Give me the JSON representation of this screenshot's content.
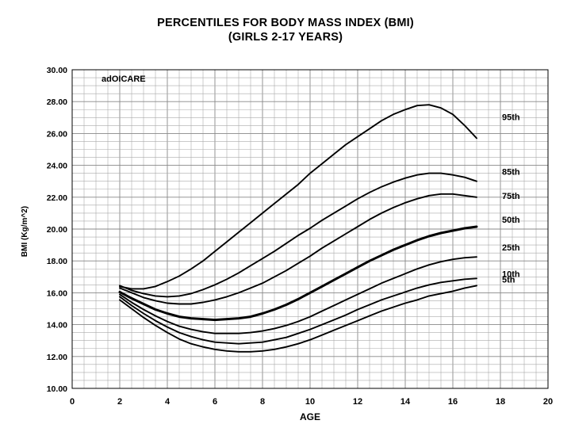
{
  "title_line1": "PERCENTILES FOR BODY MASS INDEX (BMI)",
  "title_line2": "(GIRLS 2-17 YEARS)",
  "chart_data": {
    "type": "line",
    "title": "PERCENTILES FOR BODY MASS INDEX (BMI) (GIRLS 2-17 YEARS)",
    "xlabel": "AGE",
    "ylabel": "BMI (Kg/m^2)",
    "watermark": "adOICARE",
    "xlim": [
      0,
      20
    ],
    "ylim": [
      10,
      30
    ],
    "xticks": [
      "0",
      "2",
      "4",
      "6",
      "8",
      "10",
      "12",
      "14",
      "16",
      "18",
      "20"
    ],
    "yticks": [
      "10.00",
      "12.00",
      "14.00",
      "16.00",
      "18.00",
      "20.00",
      "22.00",
      "24.00",
      "26.00",
      "28.00",
      "30.00"
    ],
    "grid": true,
    "x": [
      2,
      2.5,
      3,
      3.5,
      4,
      4.5,
      5,
      5.5,
      6,
      6.5,
      7,
      7.5,
      8,
      8.5,
      9,
      9.5,
      10,
      10.5,
      11,
      11.5,
      12,
      12.5,
      13,
      13.5,
      14,
      14.5,
      15,
      15.5,
      16,
      16.5,
      17
    ],
    "series": [
      {
        "name": "95th",
        "values": [
          16.4,
          16.25,
          16.25,
          16.4,
          16.7,
          17.05,
          17.5,
          18.0,
          18.6,
          19.2,
          19.8,
          20.4,
          21.0,
          21.6,
          22.2,
          22.8,
          23.5,
          24.1,
          24.7,
          25.3,
          25.8,
          26.3,
          26.8,
          27.2,
          27.5,
          27.75,
          27.8,
          27.6,
          27.2,
          26.5,
          25.7
        ]
      },
      {
        "name": "85th",
        "values": [
          16.45,
          16.15,
          15.95,
          15.8,
          15.75,
          15.8,
          15.95,
          16.2,
          16.5,
          16.85,
          17.25,
          17.7,
          18.15,
          18.6,
          19.1,
          19.6,
          20.05,
          20.55,
          21.0,
          21.45,
          21.9,
          22.3,
          22.65,
          22.95,
          23.2,
          23.4,
          23.5,
          23.5,
          23.4,
          23.25,
          23.0
        ]
      },
      {
        "name": "75th",
        "values": [
          16.3,
          16.0,
          15.7,
          15.5,
          15.35,
          15.3,
          15.3,
          15.4,
          15.55,
          15.75,
          16.0,
          16.3,
          16.6,
          17.0,
          17.4,
          17.85,
          18.3,
          18.8,
          19.25,
          19.7,
          20.15,
          20.6,
          21.0,
          21.35,
          21.65,
          21.9,
          22.1,
          22.2,
          22.2,
          22.1,
          22.0
        ]
      },
      {
        "name": "50th",
        "values": [
          16.05,
          15.65,
          15.3,
          14.95,
          14.7,
          14.5,
          14.4,
          14.35,
          14.3,
          14.35,
          14.4,
          14.5,
          14.7,
          14.95,
          15.25,
          15.6,
          16.0,
          16.4,
          16.8,
          17.2,
          17.6,
          18.0,
          18.35,
          18.7,
          19.0,
          19.3,
          19.55,
          19.75,
          19.9,
          20.05,
          20.15
        ]
      },
      {
        "name": "25th",
        "values": [
          15.9,
          15.4,
          14.95,
          14.55,
          14.2,
          13.9,
          13.7,
          13.55,
          13.45,
          13.45,
          13.45,
          13.5,
          13.6,
          13.75,
          13.95,
          14.2,
          14.5,
          14.85,
          15.2,
          15.55,
          15.9,
          16.25,
          16.6,
          16.9,
          17.2,
          17.5,
          17.75,
          17.95,
          18.1,
          18.2,
          18.25
        ]
      },
      {
        "name": "10th",
        "values": [
          15.75,
          15.2,
          14.7,
          14.25,
          13.85,
          13.5,
          13.25,
          13.05,
          12.9,
          12.85,
          12.8,
          12.85,
          12.9,
          13.05,
          13.2,
          13.45,
          13.7,
          14.0,
          14.3,
          14.6,
          14.95,
          15.25,
          15.55,
          15.8,
          16.05,
          16.3,
          16.5,
          16.65,
          16.75,
          16.85,
          16.9
        ]
      },
      {
        "name": "5th",
        "values": [
          15.55,
          15.0,
          14.45,
          13.95,
          13.5,
          13.1,
          12.8,
          12.6,
          12.45,
          12.35,
          12.3,
          12.3,
          12.35,
          12.45,
          12.6,
          12.8,
          13.05,
          13.35,
          13.65,
          13.95,
          14.25,
          14.55,
          14.85,
          15.1,
          15.35,
          15.55,
          15.8,
          15.95,
          16.1,
          16.3,
          16.45
        ]
      }
    ],
    "legend_placement": "right of plot, aligned with curve ends"
  }
}
